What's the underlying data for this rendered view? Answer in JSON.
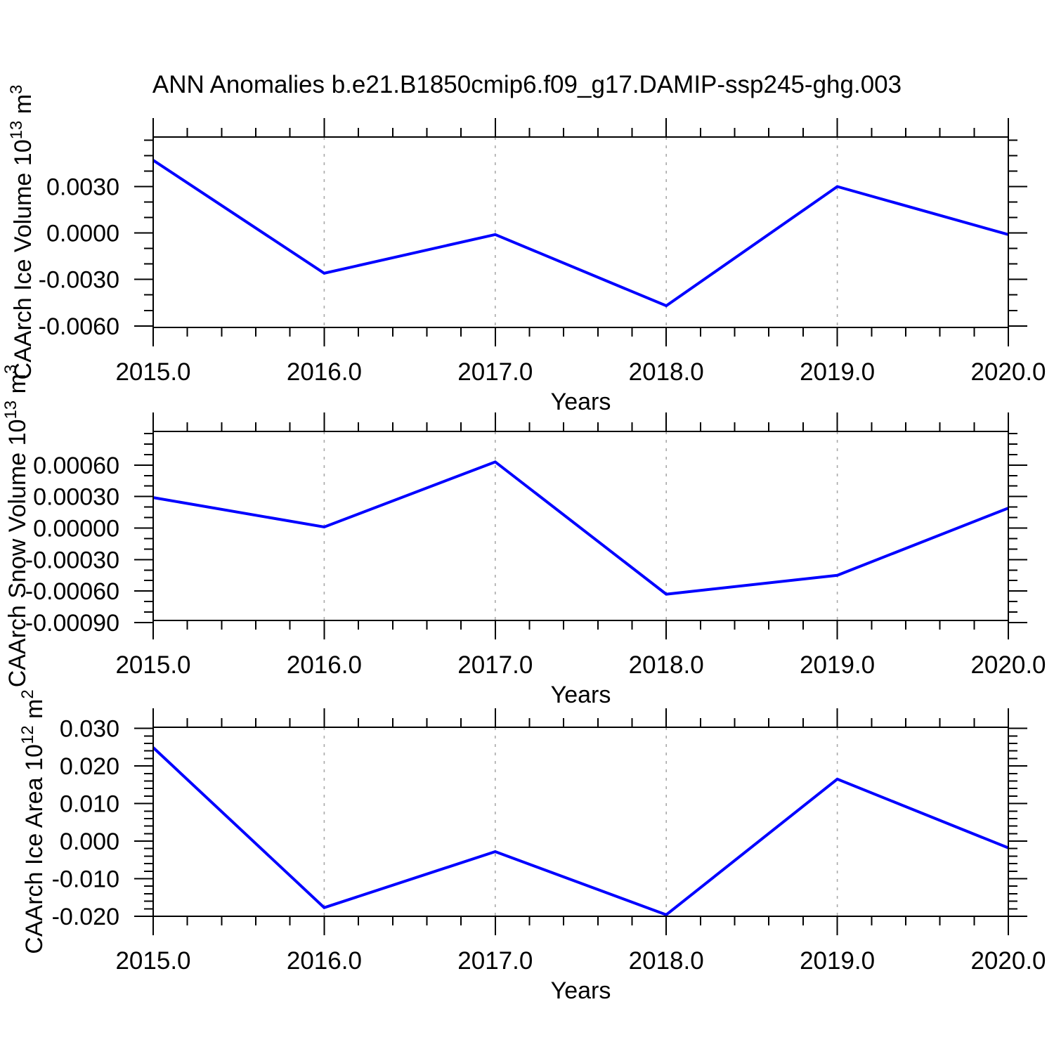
{
  "title": "ANN Anomalies b.e21.B1850cmip6.f09_g17.DAMIP-ssp245-ghg.003",
  "colors": {
    "line": "#0000ff",
    "frame": "#000000",
    "gridline": "#a9a9a9",
    "text": "#000000"
  },
  "chart_data": [
    {
      "type": "line",
      "name": "caarch-ice-volume",
      "title": "",
      "xlabel": "Years",
      "ylabel_parts": [
        {
          "t": "CAArch Ice Volume 10"
        },
        {
          "t": "13",
          "sup": true
        },
        {
          "t": " m"
        },
        {
          "t": "3",
          "sup": true
        }
      ],
      "x": [
        2015,
        2016,
        2017,
        2018,
        2019,
        2020
      ],
      "values": [
        0.0047,
        -0.0026,
        -0.0001,
        -0.0047,
        0.003,
        -0.0001
      ],
      "xlim": [
        2015,
        2020
      ],
      "ylim": [
        -0.0061,
        0.0062
      ],
      "xticks": [
        {
          "v": 2015,
          "label": "2015.0"
        },
        {
          "v": 2016,
          "label": "2016.0"
        },
        {
          "v": 2017,
          "label": "2017.0"
        },
        {
          "v": 2018,
          "label": "2018.0"
        },
        {
          "v": 2019,
          "label": "2019.0"
        },
        {
          "v": 2020,
          "label": "2020.0"
        }
      ],
      "yticks": [
        {
          "v": 0.003,
          "label": "0.0030"
        },
        {
          "v": 0.0,
          "label": "0.0000"
        },
        {
          "v": -0.003,
          "label": "-0.0030"
        },
        {
          "v": -0.006,
          "label": "-0.0060"
        }
      ],
      "x_minor_step": 0.2,
      "y_minor_step": 0.001,
      "gridline_x": [
        2016,
        2017,
        2018,
        2019
      ],
      "grid": "vertical-dashed",
      "legend": "none"
    },
    {
      "type": "line",
      "name": "caarch-snow-volume",
      "title": "",
      "xlabel": "Years",
      "ylabel_parts": [
        {
          "t": "CAArch Snow Volume 10"
        },
        {
          "t": "13",
          "sup": true
        },
        {
          "t": " m"
        },
        {
          "t": "3",
          "sup": true
        }
      ],
      "x": [
        2015,
        2016,
        2017,
        2018,
        2019,
        2020
      ],
      "values": [
        0.00029,
        1e-05,
        0.00063,
        -0.00063,
        -0.00045,
        0.00019
      ],
      "xlim": [
        2015,
        2020
      ],
      "ylim": [
        -0.00088,
        0.00092
      ],
      "xticks": [
        {
          "v": 2015,
          "label": "2015.0"
        },
        {
          "v": 2016,
          "label": "2016.0"
        },
        {
          "v": 2017,
          "label": "2017.0"
        },
        {
          "v": 2018,
          "label": "2018.0"
        },
        {
          "v": 2019,
          "label": "2019.0"
        },
        {
          "v": 2020,
          "label": "2020.0"
        }
      ],
      "yticks": [
        {
          "v": 0.0006,
          "label": "0.00060"
        },
        {
          "v": 0.0003,
          "label": "0.00030"
        },
        {
          "v": 0.0,
          "label": "0.00000"
        },
        {
          "v": -0.0003,
          "label": "-0.00030"
        },
        {
          "v": -0.0006,
          "label": "-0.00060"
        },
        {
          "v": -0.0009,
          "label": "-0.00090"
        }
      ],
      "x_minor_step": 0.2,
      "y_minor_step": 0.0001,
      "gridline_x": [
        2016,
        2017,
        2018,
        2019
      ],
      "grid": "vertical-dashed",
      "legend": "none"
    },
    {
      "type": "line",
      "name": "caarch-ice-area",
      "title": "",
      "xlabel": "Years",
      "ylabel_parts": [
        {
          "t": "CAArch Ice Area 10"
        },
        {
          "t": "12",
          "sup": true
        },
        {
          "t": " m"
        },
        {
          "t": "2",
          "sup": true
        }
      ],
      "x": [
        2015,
        2016,
        2017,
        2018,
        2019,
        2020
      ],
      "values": [
        0.0249,
        -0.0177,
        -0.0028,
        -0.0196,
        0.0165,
        -0.0018
      ],
      "xlim": [
        2015,
        2020
      ],
      "ylim": [
        -0.02,
        0.0303
      ],
      "xticks": [
        {
          "v": 2015,
          "label": "2015.0"
        },
        {
          "v": 2016,
          "label": "2016.0"
        },
        {
          "v": 2017,
          "label": "2017.0"
        },
        {
          "v": 2018,
          "label": "2018.0"
        },
        {
          "v": 2019,
          "label": "2019.0"
        },
        {
          "v": 2020,
          "label": "2020.0"
        }
      ],
      "yticks": [
        {
          "v": 0.03,
          "label": "0.030"
        },
        {
          "v": 0.02,
          "label": "0.020"
        },
        {
          "v": 0.01,
          "label": "0.010"
        },
        {
          "v": 0.0,
          "label": "0.000"
        },
        {
          "v": -0.01,
          "label": "-0.010"
        },
        {
          "v": -0.02,
          "label": "-0.020"
        }
      ],
      "x_minor_step": 0.2,
      "y_minor_step": 0.002,
      "gridline_x": [
        2016,
        2017,
        2018,
        2019
      ],
      "grid": "vertical-dashed",
      "legend": "none"
    }
  ]
}
